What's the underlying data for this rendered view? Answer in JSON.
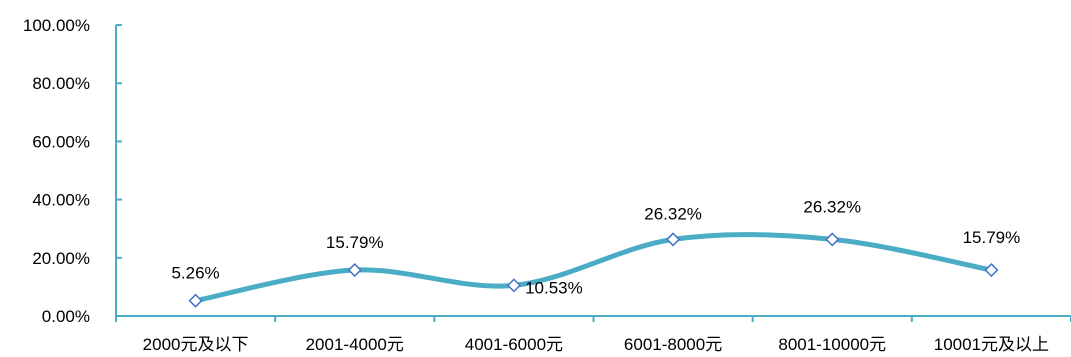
{
  "chart_data": {
    "type": "line",
    "smooth": true,
    "categories": [
      "2000元及以下",
      "2001-4000元",
      "4001-6000元",
      "6001-8000元",
      "8001-10000元",
      "10001元及以上"
    ],
    "series": [
      {
        "values": [
          5.26,
          15.79,
          10.53,
          26.32,
          26.32,
          15.79
        ]
      }
    ],
    "data_labels": [
      "5.26%",
      "15.79%",
      "10.53%",
      "26.32%",
      "26.32%",
      "15.79%"
    ],
    "y_ticks": [
      "0.00%",
      "20.00%",
      "40.00%",
      "60.00%",
      "80.00%",
      "100.00%"
    ],
    "ylim": [
      0,
      100
    ],
    "grid": false,
    "legend": "none",
    "colors": {
      "line": "#4bacc6",
      "marker_fill": "#ffffff",
      "marker_stroke": "#4472c4",
      "axis": "#4bacc6",
      "text": "#000000"
    }
  }
}
